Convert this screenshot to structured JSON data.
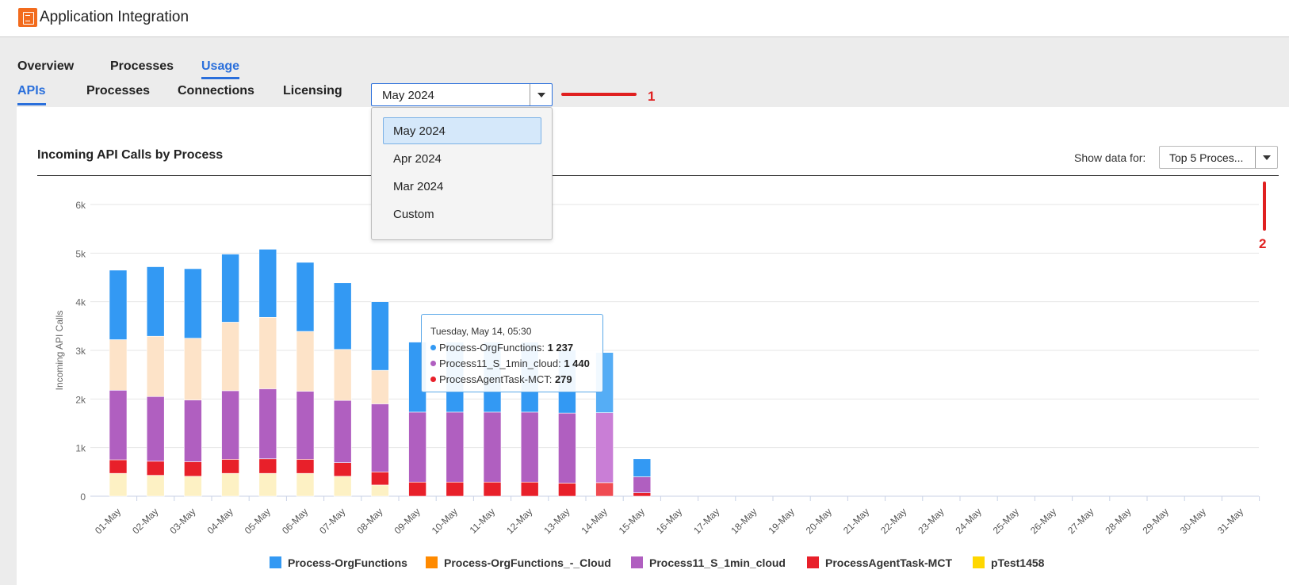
{
  "header": {
    "title": "Application Integration"
  },
  "nav": {
    "tabs": [
      "Overview",
      "Processes",
      "Usage"
    ],
    "active": "Usage"
  },
  "subnav": {
    "tabs": [
      "APIs",
      "Processes",
      "Connections",
      "Licensing"
    ],
    "active": "APIs"
  },
  "period_select": {
    "value": "May 2024",
    "options": [
      "May 2024",
      "Apr 2024",
      "Mar 2024",
      "Custom"
    ],
    "highlighted": "May 2024"
  },
  "annotations": {
    "first": "1",
    "second": "2"
  },
  "panel": {
    "title": "Incoming API Calls by Process",
    "show_data_label": "Show data for:",
    "show_data_value": "Top 5 Proces..."
  },
  "tooltip": {
    "header": "Tuesday, May 14, 05:30",
    "rows": [
      {
        "name": "Process-OrgFunctions",
        "value": "1 237",
        "color": "#3399f3"
      },
      {
        "name": "Process11_S_1min_cloud",
        "value": "1 440",
        "color": "#b05fc0"
      },
      {
        "name": "ProcessAgentTask-MCT",
        "value": "279",
        "color": "#e8202a"
      }
    ]
  },
  "colors": {
    "accent": "#2a6fdb",
    "annotation": "#e02020"
  },
  "chart_data": {
    "type": "bar",
    "stacked": true,
    "ylabel": "Incoming API Calls",
    "ylim": [
      0,
      6000
    ],
    "yticks": [
      "0",
      "1k",
      "2k",
      "3k",
      "4k",
      "5k",
      "6k"
    ],
    "grid": true,
    "legend_position": "bottom",
    "categories": [
      "01-May",
      "02-May",
      "03-May",
      "04-May",
      "05-May",
      "06-May",
      "07-May",
      "08-May",
      "09-May",
      "10-May",
      "11-May",
      "12-May",
      "13-May",
      "14-May",
      "15-May",
      "16-May",
      "17-May",
      "18-May",
      "19-May",
      "20-May",
      "21-May",
      "22-May",
      "23-May",
      "24-May",
      "25-May",
      "26-May",
      "27-May",
      "28-May",
      "29-May",
      "30-May",
      "31-May"
    ],
    "series": [
      {
        "name": "pTest1458",
        "color": "#ffd700",
        "values": [
          470,
          430,
          410,
          470,
          470,
          470,
          410,
          230,
          0,
          0,
          0,
          0,
          0,
          0,
          0,
          0,
          0,
          0,
          0,
          0,
          0,
          0,
          0,
          0,
          0,
          0,
          0,
          0,
          0,
          0,
          0
        ]
      },
      {
        "name": "ProcessAgentTask-MCT",
        "color": "#e8202a",
        "values": [
          280,
          290,
          300,
          290,
          300,
          290,
          280,
          270,
          290,
          290,
          290,
          290,
          270,
          279,
          70,
          0,
          0,
          0,
          0,
          0,
          0,
          0,
          0,
          0,
          0,
          0,
          0,
          0,
          0,
          0,
          0
        ]
      },
      {
        "name": "Process11_S_1min_cloud",
        "color": "#b05fc0",
        "values": [
          1430,
          1330,
          1270,
          1410,
          1440,
          1400,
          1280,
          1400,
          1440,
          1440,
          1440,
          1440,
          1440,
          1440,
          330,
          0,
          0,
          0,
          0,
          0,
          0,
          0,
          0,
          0,
          0,
          0,
          0,
          0,
          0,
          0,
          0
        ]
      },
      {
        "name": "Process-OrgFunctions_-_Cloud",
        "color": "#ff8a00",
        "values": [
          1040,
          1240,
          1270,
          1410,
          1470,
          1230,
          1050,
          690,
          0,
          0,
          0,
          0,
          0,
          0,
          0,
          0,
          0,
          0,
          0,
          0,
          0,
          0,
          0,
          0,
          0,
          0,
          0,
          0,
          0,
          0,
          0
        ]
      },
      {
        "name": "Process-OrgFunctions",
        "color": "#3399f3",
        "values": [
          1430,
          1430,
          1430,
          1400,
          1400,
          1420,
          1370,
          1410,
          1440,
          1440,
          1440,
          1440,
          1300,
          1237,
          370,
          0,
          0,
          0,
          0,
          0,
          0,
          0,
          0,
          0,
          0,
          0,
          0,
          0,
          0,
          0,
          0
        ]
      }
    ],
    "legend_order": [
      "Process-OrgFunctions",
      "Process-OrgFunctions_-_Cloud",
      "Process11_S_1min_cloud",
      "ProcessAgentTask-MCT",
      "pTest1458"
    ]
  }
}
